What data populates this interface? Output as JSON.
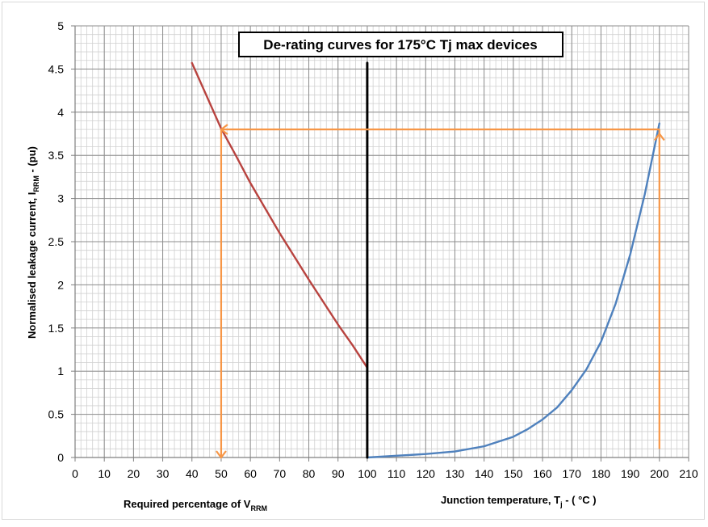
{
  "chart_data": {
    "type": "line",
    "title": "De-rating curves for 175°C Tj max devices",
    "ylabel": {
      "main": "Normalised leakage current, I",
      "sub": "RRM",
      "tail": " - (pu)"
    },
    "xlabel_left": {
      "main": "Required percentage of V",
      "sub": "RRM"
    },
    "xlabel_right": {
      "main": "Junction temperature, T",
      "sub": "j",
      "tail": " - ( °C )"
    },
    "xlim": [
      0,
      210
    ],
    "ylim": [
      0,
      5
    ],
    "x_ticks": [
      "0",
      "10",
      "20",
      "30",
      "40",
      "50",
      "60",
      "70",
      "80",
      "90",
      "100",
      "110",
      "120",
      "130",
      "140",
      "150",
      "160",
      "170",
      "180",
      "190",
      "200",
      "210"
    ],
    "y_ticks": [
      "0",
      "0.5",
      "1",
      "1.5",
      "2",
      "2.5",
      "3",
      "3.5",
      "4",
      "4.5",
      "5"
    ],
    "grid": true,
    "series": [
      {
        "color": "#b8433f",
        "x": [
          40,
          45,
          50,
          55,
          60,
          65,
          70,
          75,
          80,
          85,
          90,
          95,
          100
        ],
        "y": [
          4.57,
          4.19,
          3.81,
          3.5,
          3.18,
          2.89,
          2.6,
          2.33,
          2.06,
          1.8,
          1.54,
          1.3,
          1.04
        ]
      },
      {
        "color": "#4f81bd",
        "x": [
          100,
          110,
          120,
          130,
          140,
          150,
          155,
          160,
          165,
          170,
          175,
          180,
          185,
          190,
          195,
          200
        ],
        "y": [
          0.0,
          0.02,
          0.04,
          0.07,
          0.13,
          0.24,
          0.33,
          0.44,
          0.58,
          0.78,
          1.02,
          1.34,
          1.78,
          2.35,
          3.05,
          3.87
        ]
      },
      {
        "color": "#000000",
        "x": [
          100,
          100
        ],
        "y": [
          0,
          4.57
        ]
      }
    ],
    "annotations": {
      "color": "#f79646",
      "path": [
        [
          200,
          0.1
        ],
        [
          200,
          3.8
        ],
        [
          50,
          3.8
        ],
        [
          50,
          0
        ]
      ]
    }
  }
}
